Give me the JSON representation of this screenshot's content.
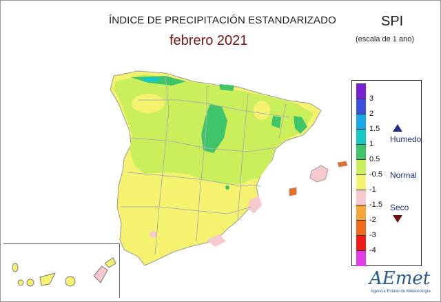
{
  "title": "ÍNDICE DE PRECIPITACIÓN ESTANDARIZADO",
  "period": "febrero 2021",
  "index_name": "SPI",
  "scale_note": "(escala de 1 ano)",
  "legend": {
    "classes": [
      {
        "label": "3",
        "color": "#7b1fd6"
      },
      {
        "label": "2",
        "color": "#3b4fe0"
      },
      {
        "label": "1.5",
        "color": "#1aa7e8"
      },
      {
        "label": "1",
        "color": "#16c8c8"
      },
      {
        "label": "0.5",
        "color": "#3fc46a"
      },
      {
        "label": "-0.5",
        "color": "#c9ef5a"
      },
      {
        "label": "-1",
        "color": "#f4f26e"
      },
      {
        "label": "-1.5",
        "color": "#f6c9cf"
      },
      {
        "label": "-2",
        "color": "#f4a63b"
      },
      {
        "label": "-3",
        "color": "#f26b1d"
      },
      {
        "label": "-4",
        "color": "#f21b1b"
      },
      {
        "label": "",
        "color": "#e23ee8"
      }
    ],
    "humid_label": "Humedo",
    "normal_label": "Normal",
    "dry_label": "Seco",
    "humid_color": "#1f2f8a",
    "dry_color": "#6b1212"
  },
  "logo": {
    "text": "AEmet",
    "subtitle": "Agencia Estatal de Meteorología"
  }
}
